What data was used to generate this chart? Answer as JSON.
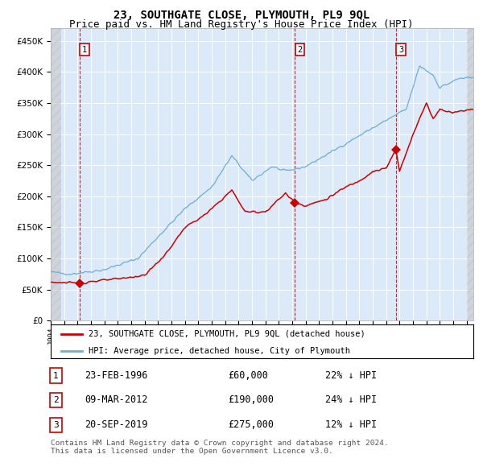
{
  "title": "23, SOUTHGATE CLOSE, PLYMOUTH, PL9 9QL",
  "subtitle": "Price paid vs. HM Land Registry's House Price Index (HPI)",
  "hpi_label": "HPI: Average price, detached house, City of Plymouth",
  "price_label": "23, SOUTHGATE CLOSE, PLYMOUTH, PL9 9QL (detached house)",
  "transactions": [
    {
      "num": 1,
      "date": "23-FEB-1996",
      "price": 60000,
      "hpi_pct": "22% ↓ HPI",
      "year": 1996.14
    },
    {
      "num": 2,
      "date": "09-MAR-2012",
      "price": 190000,
      "hpi_pct": "24% ↓ HPI",
      "year": 2012.19
    },
    {
      "num": 3,
      "date": "20-SEP-2019",
      "price": 275000,
      "hpi_pct": "12% ↓ HPI",
      "year": 2019.72
    }
  ],
  "ylim": [
    0,
    470000
  ],
  "xlim_start": 1994.0,
  "xlim_end": 2025.5,
  "plot_bg": "#dce9f8",
  "hpi_color": "#6baed6",
  "price_color": "#cc0000",
  "grid_color": "#ffffff",
  "footer": "Contains HM Land Registry data © Crown copyright and database right 2024.\nThis data is licensed under the Open Government Licence v3.0.",
  "title_fontsize": 10,
  "subtitle_fontsize": 9
}
